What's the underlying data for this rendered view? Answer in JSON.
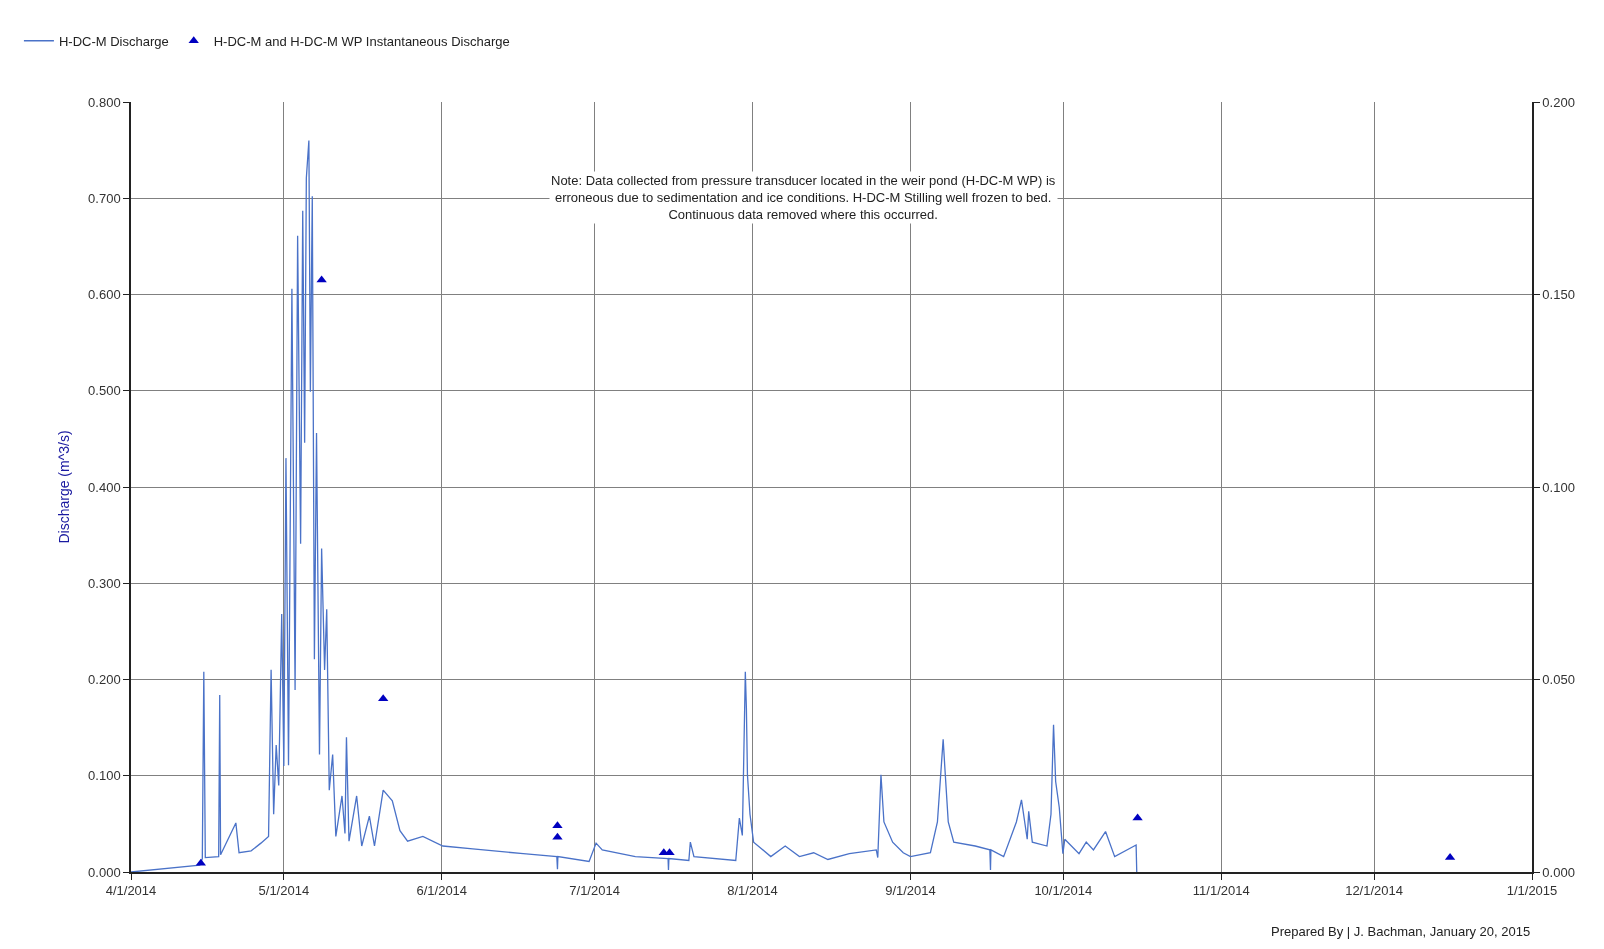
{
  "chart_data": {
    "type": "line",
    "ylabel": "Discharge (m^3/s)",
    "annotations": [
      "Note: Data collected from pressure transducer located in the weir pond (H-DC-M WP) is\nerroneous due to sedimentation and ice conditions. H-DC-M Stilling well frozen to bed.\nContinuous data removed where this occurred.",
      "Prepared By | J. Bachman, January 20, 2015"
    ],
    "series": [
      {
        "name": "H-DC-M Discharge",
        "color": "#4a72c8",
        "marker": "none",
        "line_style": "solid",
        "x": [
          "2014-04-01T00:00",
          "2014-04-14T12:00",
          "2014-04-15T00:00",
          "2014-04-15T07:00",
          "2014-04-15T14:00",
          "2014-04-18T05:00",
          "2014-04-18T10:00",
          "2014-04-18T14:00",
          "2014-04-21T14:00",
          "2014-04-22T05:00",
          "2014-04-24T14:00",
          "2014-04-26T12:00",
          "2014-04-28T00:00",
          "2014-04-28T12:00",
          "2014-04-29T00:00",
          "2014-04-29T12:00",
          "2014-04-30T00:00",
          "2014-04-30T14:00",
          "2014-05-01T00:00",
          "2014-05-01T10:00",
          "2014-05-01T22:00",
          "2014-05-02T14:00",
          "2014-05-03T05:00",
          "2014-05-03T17:00",
          "2014-05-04T07:00",
          "2014-05-04T17:00",
          "2014-05-05T02:00",
          "2014-05-05T10:00",
          "2014-05-05T22:00",
          "2014-05-06T05:00",
          "2014-05-06T14:00",
          "2014-05-07T00:00",
          "2014-05-07T10:00",
          "2014-05-08T00:00",
          "2014-05-08T10:00",
          "2014-05-09T00:00",
          "2014-05-09T10:00",
          "2014-05-09T22:00",
          "2014-05-10T14:00",
          "2014-05-11T05:00",
          "2014-05-12T10:00",
          "2014-05-13T00:00",
          "2014-05-13T07:00",
          "2014-05-13T19:00",
          "2014-05-15T07:00",
          "2014-05-16T07:00",
          "2014-05-17T19:00",
          "2014-05-18T19:00",
          "2014-05-20T12:00",
          "2014-05-22T07:00",
          "2014-05-23T19:00",
          "2014-05-25T07:00",
          "2014-05-28T07:00",
          "2014-06-01T05:00",
          "2014-06-07T02:00",
          "2014-06-17T00:00",
          "2014-06-23T14:00",
          "2014-06-23T17:00",
          "2014-06-23T19:00",
          "2014-06-29T22:00",
          "2014-07-01T07:00",
          "2014-07-02T12:00",
          "2014-07-09T00:00",
          "2014-07-15T10:00",
          "2014-07-15T12:00",
          "2014-07-15T14:00",
          "2014-07-19T12:00",
          "2014-07-19T19:00",
          "2014-07-20T12:00",
          "2014-07-28T17:00",
          "2014-07-29T10:00",
          "2014-07-30T00:00",
          "2014-07-30T14:00",
          "2014-07-30T19:00",
          "2014-07-31T00:00",
          "2014-07-31T12:00",
          "2014-08-01T05:00",
          "2014-08-04T14:00",
          "2014-08-07T10:00",
          "2014-08-10T05:00",
          "2014-08-13T00:00",
          "2014-08-15T19:00",
          "2014-08-20T00:00",
          "2014-08-25T07:00",
          "2014-08-25T14:00",
          "2014-08-26T05:00",
          "2014-08-26T19:00",
          "2014-08-28T12:00",
          "2014-08-30T14:00",
          "2014-09-01T00:00",
          "2014-09-04T22:00",
          "2014-09-06T07:00",
          "2014-09-07T10:00",
          "2014-09-07T17:00",
          "2014-09-08T10:00",
          "2014-09-09T12:00",
          "2014-09-13T17:00",
          "2014-09-16T14:00",
          "2014-09-16T17:00",
          "2014-09-16T19:00",
          "2014-09-19T07:00",
          "2014-09-21T19:00",
          "2014-09-22T19:00",
          "2014-09-23T22:00",
          "2014-09-24T05:00",
          "2014-09-24T22:00",
          "2014-09-27T19:00",
          "2014-09-28T14:00",
          "2014-09-29T02:00",
          "2014-09-29T12:00",
          "2014-09-30T05:00",
          "2014-09-30T22:00",
          "2014-10-01T07:00",
          "2014-10-04T02:00",
          "2014-10-05T12:00",
          "2014-10-06T22:00",
          "2014-10-09T07:00",
          "2014-10-11T02:00",
          "2014-10-15T07:00",
          "2014-10-15T10:00"
        ],
        "values": [
          0.0,
          0.007,
          0.014,
          0.208,
          0.015,
          0.016,
          0.184,
          0.018,
          0.051,
          0.02,
          0.022,
          0.03,
          0.037,
          0.21,
          0.06,
          0.132,
          0.09,
          0.268,
          0.11,
          0.43,
          0.111,
          0.606,
          0.189,
          0.661,
          0.341,
          0.687,
          0.446,
          0.721,
          0.76,
          0.499,
          0.702,
          0.221,
          0.456,
          0.122,
          0.336,
          0.21,
          0.273,
          0.085,
          0.122,
          0.037,
          0.079,
          0.04,
          0.14,
          0.032,
          0.079,
          0.027,
          0.058,
          0.027,
          0.085,
          0.074,
          0.043,
          0.032,
          0.037,
          0.027,
          0.024,
          0.019,
          0.016,
          0.003,
          0.016,
          0.011,
          0.03,
          0.023,
          0.016,
          0.014,
          0.002,
          0.014,
          0.012,
          0.031,
          0.016,
          0.012,
          0.056,
          0.038,
          0.208,
          0.171,
          0.101,
          0.06,
          0.031,
          0.016,
          0.027,
          0.016,
          0.02,
          0.013,
          0.019,
          0.023,
          0.015,
          0.101,
          0.052,
          0.031,
          0.02,
          0.016,
          0.02,
          0.052,
          0.138,
          0.112,
          0.052,
          0.031,
          0.027,
          0.023,
          0.002,
          0.023,
          0.016,
          0.052,
          0.075,
          0.034,
          0.063,
          0.031,
          0.027,
          0.06,
          0.153,
          0.094,
          0.067,
          0.019,
          0.034,
          0.019,
          0.031,
          0.023,
          0.042,
          0.016,
          0.028,
          0.0
        ]
      },
      {
        "name": "H-DC-M and H-DC-M WP Instantaneous Discharge",
        "type": "scatter",
        "color": "#0000c0",
        "marker": "triangle",
        "x": [
          "2014-04-14T17:00",
          "2014-05-08T10:00",
          "2014-05-20T12:00",
          "2014-06-23T17:00",
          "2014-06-23T17:00",
          "2014-07-14T14:00",
          "2014-07-15T17:00",
          "2014-10-15T14:00",
          "2014-12-15T22:00"
        ],
        "values": [
          0.009,
          0.615,
          0.18,
          0.048,
          0.036,
          0.02,
          0.02,
          0.056,
          0.015
        ]
      }
    ],
    "xlim": [
      "2014-04-01",
      "2015-01-01"
    ],
    "xticks": [
      {
        "value": "2014-04-01",
        "label": "4/1/2014"
      },
      {
        "value": "2014-05-01",
        "label": "5/1/2014"
      },
      {
        "value": "2014-06-01",
        "label": "6/1/2014"
      },
      {
        "value": "2014-07-01",
        "label": "7/1/2014"
      },
      {
        "value": "2014-08-01",
        "label": "8/1/2014"
      },
      {
        "value": "2014-09-01",
        "label": "9/1/2014"
      },
      {
        "value": "2014-10-01",
        "label": "10/1/2014"
      },
      {
        "value": "2014-11-01",
        "label": "11/1/2014"
      },
      {
        "value": "2014-12-01",
        "label": "12/1/2014"
      },
      {
        "value": "2015-01-01",
        "label": "1/1/2015"
      }
    ],
    "ylim": [
      0,
      0.8
    ],
    "yticks": [
      {
        "value": 0,
        "label": "0.000"
      },
      {
        "value": 0.1,
        "label": "0.100"
      },
      {
        "value": 0.2,
        "label": "0.200"
      },
      {
        "value": 0.3,
        "label": "0.300"
      },
      {
        "value": 0.4,
        "label": "0.400"
      },
      {
        "value": 0.5,
        "label": "0.500"
      },
      {
        "value": 0.6,
        "label": "0.600"
      },
      {
        "value": 0.7,
        "label": "0.700"
      },
      {
        "value": 0.8,
        "label": "0.800"
      }
    ],
    "y2lim": [
      0,
      0.2
    ],
    "y2ticks": [
      {
        "value": 0,
        "label": "0.000"
      },
      {
        "value": 0.05,
        "label": "0.050"
      },
      {
        "value": 0.1,
        "label": "0.100"
      },
      {
        "value": 0.15,
        "label": "0.150"
      },
      {
        "value": 0.2,
        "label": "0.200"
      }
    ],
    "grid": true,
    "legend": "top left"
  }
}
